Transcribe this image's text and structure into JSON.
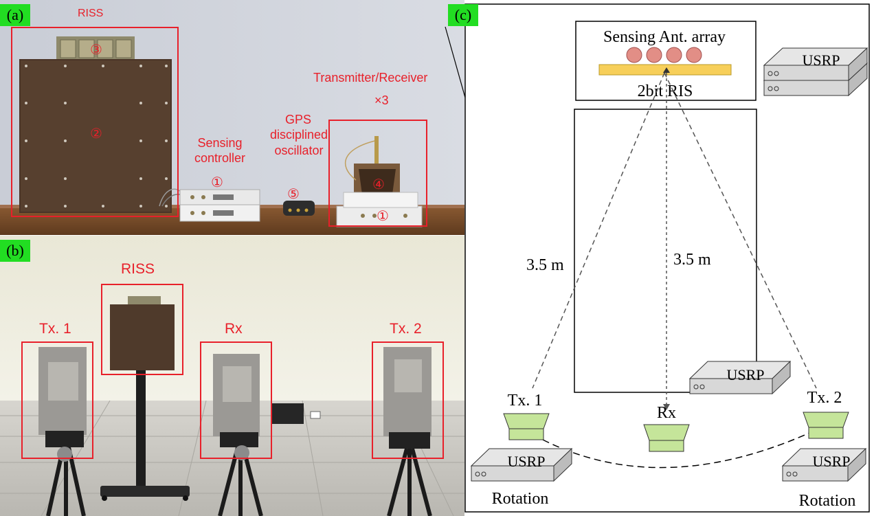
{
  "panels": {
    "a": {
      "tag": "(a)",
      "riss_label": "RISS",
      "transmitter_label": "Transmitter/Receiver",
      "transmitter_count": "×3",
      "sensing_controller_line1": "Sensing",
      "sensing_controller_line2": "controller",
      "gps_line1": "GPS",
      "gps_line2": "disciplined",
      "gps_line3": "oscillator",
      "markers": [
        "③",
        "②",
        "①",
        "⑤",
        "④",
        "①"
      ]
    },
    "b": {
      "tag": "(b)",
      "riss_label": "RISS",
      "tx1_label": "Tx. 1",
      "rx_label": "Rx",
      "tx2_label": "Tx. 2"
    },
    "c": {
      "tag": "(c)",
      "sensing_array_label": "Sensing Ant. array",
      "ris_label": "2bit RIS",
      "usrp_label": "USRP",
      "distance_left": "3.5 m",
      "distance_center": "3.5 m",
      "tx1_label": "Tx. 1",
      "rx_label": "Rx",
      "tx2_label": "Tx. 2",
      "rotation_left": "Rotation",
      "rotation_right": "Rotation"
    }
  },
  "colors": {
    "red": "#e8202a",
    "tag_green": "#22dd22",
    "antenna_green": "#c5e59a",
    "ris_yellow": "#f7cf5a",
    "element_pink": "#e28e86",
    "usrp_gray": "#d8d8d8"
  }
}
